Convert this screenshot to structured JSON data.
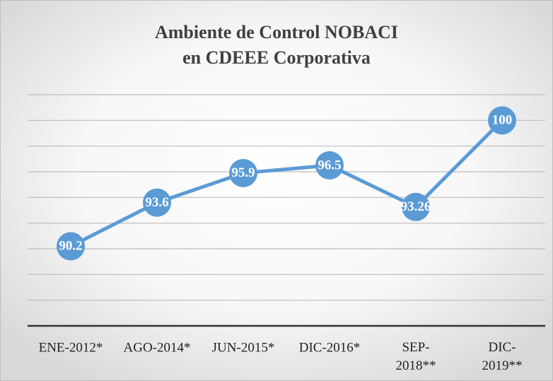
{
  "chart_data": {
    "type": "line",
    "title": [
      "Ambiente de Control NOBACI",
      "en CDEEE Corporativa"
    ],
    "categories": [
      "ENE-2012*",
      "AGO-2014*",
      "JUN-2015*",
      "DIC-2016*",
      "SEP-2018**",
      "DIC-2019**"
    ],
    "values": [
      90.2,
      93.6,
      95.9,
      96.5,
      93.26,
      100
    ],
    "color": "#5b9bd5",
    "ylim": [
      84,
      102
    ],
    "yticks": [
      84,
      86,
      88,
      90,
      92,
      94,
      96,
      98,
      100,
      102
    ],
    "grid": true,
    "data_labels": true
  }
}
